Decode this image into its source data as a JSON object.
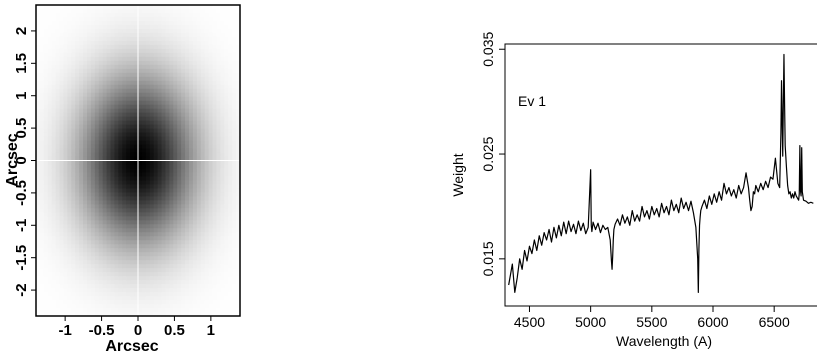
{
  "chart_data": [
    {
      "type": "heatmap",
      "xlabel": "Arcsec",
      "ylabel": "Arcsec",
      "xlim": [
        -1.4,
        1.4
      ],
      "ylim": [
        -2.4,
        2.4
      ],
      "x_ticks": [
        {
          "value": -1,
          "label": "-1"
        },
        {
          "value": -0.5,
          "label": "-0.5"
        },
        {
          "value": 0,
          "label": "0"
        },
        {
          "value": 0.5,
          "label": "0.5"
        },
        {
          "value": 1,
          "label": "1"
        }
      ],
      "y_ticks": [
        {
          "value": -2,
          "label": "-2"
        },
        {
          "value": -1.5,
          "label": "-1.5"
        },
        {
          "value": -1,
          "label": "-1"
        },
        {
          "value": -0.5,
          "label": "-0.5"
        },
        {
          "value": 0,
          "label": "0"
        },
        {
          "value": 0.5,
          "label": "0.5"
        },
        {
          "value": 1,
          "label": "1"
        },
        {
          "value": 1.5,
          "label": "1.5"
        },
        {
          "value": 2,
          "label": "2"
        }
      ],
      "gaussian": {
        "center_x": 0.0,
        "center_y": 0.0,
        "sigma_x": 0.55,
        "sigma_y": 0.9
      },
      "crosshair": {
        "x": 0,
        "y": 0,
        "color": "#ffffff"
      },
      "colormap": "white-to-black"
    },
    {
      "type": "line",
      "annotation": "Ev 1",
      "xlabel": "Wavelength (A)",
      "ylabel": "Weight",
      "xlim": [
        4300,
        6850
      ],
      "ylim": [
        0.0105,
        0.0355
      ],
      "x_ticks": [
        {
          "value": 4500,
          "label": "4500"
        },
        {
          "value": 5000,
          "label": "5000"
        },
        {
          "value": 5500,
          "label": "5500"
        },
        {
          "value": 6000,
          "label": "6000"
        },
        {
          "value": 6500,
          "label": "6500"
        }
      ],
      "y_ticks": [
        {
          "value": 0.015,
          "label": "0.015"
        },
        {
          "value": 0.025,
          "label": "0.025"
        },
        {
          "value": 0.035,
          "label": "0.035"
        }
      ],
      "series": [
        {
          "color": "#000000",
          "x": [
            4330,
            4360,
            4380,
            4400,
            4420,
            4440,
            4460,
            4480,
            4500,
            4520,
            4540,
            4560,
            4580,
            4600,
            4620,
            4640,
            4660,
            4680,
            4700,
            4720,
            4740,
            4760,
            4780,
            4800,
            4820,
            4840,
            4860,
            4880,
            4900,
            4920,
            4940,
            4960,
            4980,
            5000,
            5005,
            5010,
            5020,
            5040,
            5060,
            5080,
            5100,
            5120,
            5140,
            5160,
            5170,
            5175,
            5180,
            5185,
            5190,
            5200,
            5220,
            5240,
            5260,
            5280,
            5300,
            5320,
            5340,
            5360,
            5380,
            5400,
            5420,
            5440,
            5460,
            5480,
            5500,
            5520,
            5540,
            5560,
            5580,
            5600,
            5620,
            5640,
            5660,
            5680,
            5700,
            5720,
            5740,
            5760,
            5780,
            5800,
            5820,
            5840,
            5860,
            5875,
            5880,
            5885,
            5890,
            5895,
            5900,
            5910,
            5930,
            5950,
            5970,
            5990,
            6010,
            6030,
            6050,
            6070,
            6090,
            6110,
            6130,
            6150,
            6170,
            6190,
            6210,
            6230,
            6250,
            6270,
            6290,
            6300,
            6310,
            6320,
            6330,
            6340,
            6350,
            6370,
            6390,
            6410,
            6430,
            6450,
            6470,
            6490,
            6510,
            6530,
            6545,
            6555,
            6560,
            6565,
            6570,
            6575,
            6580,
            6585,
            6590,
            6600,
            6610,
            6620,
            6630,
            6640,
            6650,
            6660,
            6670,
            6680,
            6690,
            6700,
            6705,
            6710,
            6715,
            6720,
            6725,
            6730,
            6740,
            6760,
            6780,
            6800,
            6820
          ],
          "y": [
            0.0125,
            0.0145,
            0.0118,
            0.0132,
            0.015,
            0.014,
            0.0158,
            0.0148,
            0.0162,
            0.0155,
            0.0168,
            0.0158,
            0.0172,
            0.0163,
            0.0175,
            0.0168,
            0.0178,
            0.0166,
            0.018,
            0.017,
            0.0182,
            0.0172,
            0.0185,
            0.0174,
            0.0186,
            0.0176,
            0.0183,
            0.0174,
            0.0186,
            0.0177,
            0.0184,
            0.0174,
            0.018,
            0.0235,
            0.0182,
            0.0176,
            0.0185,
            0.0178,
            0.0184,
            0.0175,
            0.0182,
            0.0178,
            0.018,
            0.0168,
            0.0148,
            0.014,
            0.0152,
            0.0168,
            0.0178,
            0.0183,
            0.0188,
            0.0182,
            0.0192,
            0.0184,
            0.019,
            0.0182,
            0.0196,
            0.0186,
            0.0192,
            0.0186,
            0.02,
            0.019,
            0.0196,
            0.0188,
            0.02,
            0.0192,
            0.0198,
            0.019,
            0.0203,
            0.0194,
            0.02,
            0.0192,
            0.0206,
            0.0196,
            0.0202,
            0.0194,
            0.0208,
            0.0198,
            0.0204,
            0.0196,
            0.0205,
            0.0194,
            0.018,
            0.015,
            0.0118,
            0.016,
            0.0182,
            0.019,
            0.0196,
            0.02,
            0.0206,
            0.0198,
            0.021,
            0.0202,
            0.0212,
            0.0204,
            0.0214,
            0.0206,
            0.0222,
            0.0212,
            0.0218,
            0.021,
            0.0216,
            0.0208,
            0.022,
            0.0212,
            0.0218,
            0.0232,
            0.0218,
            0.0206,
            0.0196,
            0.02,
            0.0214,
            0.0212,
            0.022,
            0.0214,
            0.0222,
            0.0216,
            0.0224,
            0.0218,
            0.0228,
            0.0226,
            0.0246,
            0.0222,
            0.0218,
            0.027,
            0.032,
            0.0282,
            0.0248,
            0.03,
            0.0345,
            0.0298,
            0.0258,
            0.0238,
            0.022,
            0.0212,
            0.0214,
            0.0208,
            0.0212,
            0.0208,
            0.0214,
            0.021,
            0.0208,
            0.0206,
            0.0212,
            0.0258,
            0.0215,
            0.021,
            0.0256,
            0.0214,
            0.0206,
            0.0205,
            0.0203,
            0.0204,
            0.0203
          ]
        }
      ]
    }
  ]
}
